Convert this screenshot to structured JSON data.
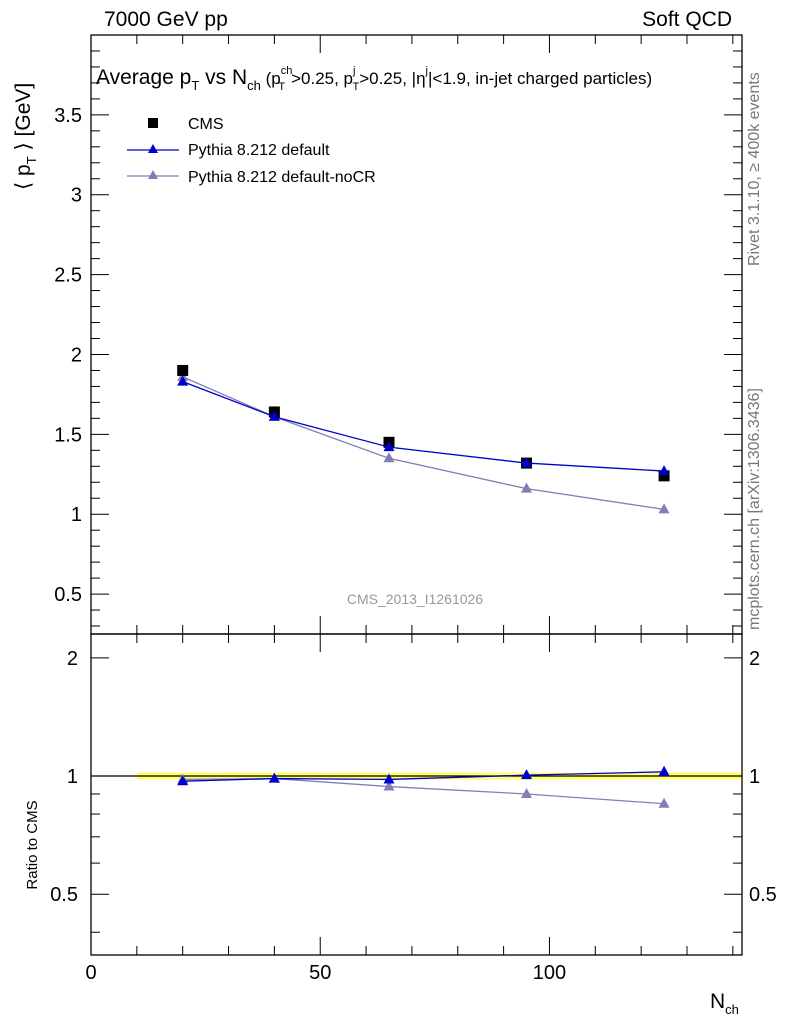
{
  "header": {
    "left": "7000 GeV pp",
    "right": "Soft QCD"
  },
  "side_labels": {
    "rivet": "Rivet 3.1.10, ≥ 400k events",
    "mcplots": "mcplots.cern.ch [arXiv:1306.3436]"
  },
  "chart_data": [
    {
      "type": "scatter",
      "title": {
        "main": "Average p",
        "main_sub": "T",
        "vs": " vs N",
        "vs_sub": "ch",
        "cuts_open": " (p",
        "cuts_sup1": "ch",
        "cuts_sub1": "T",
        "cuts_mid1": ">0.25, p",
        "cuts_sup2": "j",
        "cuts_sub2": "T",
        "cuts_mid2": ">0.25, |η",
        "cuts_sup3": "j",
        "cuts_end": "|<1.9, in-jet charged particles)"
      },
      "ylabel": "⟨ p_T ⟩ [GeV]",
      "ylabel_parts": {
        "open": "⟨ p",
        "sub": "T",
        "close": " ⟩ [GeV]"
      },
      "watermark": "CMS_2013_I1261026",
      "xlim": [
        0,
        142
      ],
      "ylim": [
        0.25,
        4.0
      ],
      "yticks": [
        "0.5",
        "1",
        "1.5",
        "2",
        "2.5",
        "3",
        "3.5"
      ],
      "legend_position": "top-left",
      "series": [
        {
          "name": "CMS",
          "color": "#000000",
          "marker": "square",
          "x": [
            20,
            40,
            65,
            95,
            125
          ],
          "y": [
            1.9,
            1.64,
            1.45,
            1.32,
            1.24
          ]
        },
        {
          "name": "Pythia 8.212 default",
          "color": "#0000cc",
          "marker": "triangle",
          "x": [
            20,
            40,
            65,
            95,
            125
          ],
          "y": [
            1.83,
            1.61,
            1.42,
            1.32,
            1.27
          ]
        },
        {
          "name": "Pythia 8.212 default-noCR",
          "color": "#7f7fb8",
          "marker": "triangle",
          "x": [
            20,
            40,
            65,
            95,
            125
          ],
          "y": [
            1.86,
            1.61,
            1.35,
            1.16,
            1.03
          ]
        }
      ]
    },
    {
      "type": "line",
      "ylabel": "Ratio to CMS",
      "xlabel": "N_ch",
      "xlabel_parts": {
        "main": "N",
        "sub": "ch"
      },
      "xlim": [
        0,
        142
      ],
      "ylim": [
        0.35,
        2.3
      ],
      "yticks": [
        "0.5",
        "1",
        "2"
      ],
      "xticks": [
        "0",
        "50",
        "100"
      ],
      "band": {
        "x": [
          10,
          142
        ],
        "y": [
          0.98,
          1.02
        ],
        "color": "#ffff66"
      },
      "series": [
        {
          "name": "Pythia 8.212 default",
          "color": "#0000cc",
          "marker": "triangle",
          "x": [
            20,
            40,
            65,
            95,
            125
          ],
          "y": [
            0.97,
            0.985,
            0.98,
            1.005,
            1.025
          ]
        },
        {
          "name": "Pythia 8.212 default-noCR",
          "color": "#7f7fb8",
          "marker": "triangle",
          "x": [
            20,
            40,
            65,
            95,
            125
          ],
          "y": [
            0.98,
            0.985,
            0.94,
            0.9,
            0.85
          ]
        }
      ]
    }
  ]
}
